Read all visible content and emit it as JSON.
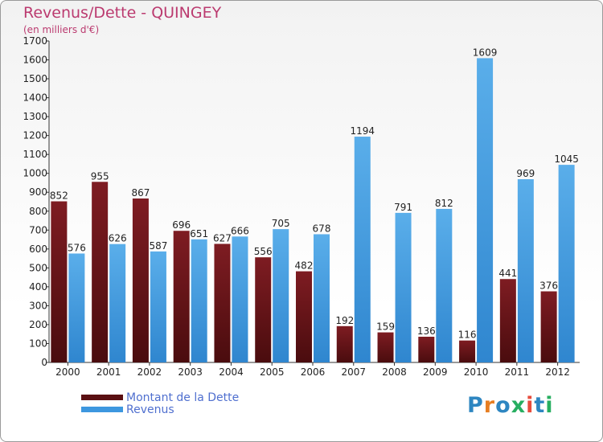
{
  "title": "Revenus/Dette - QUINGEY",
  "subtitle": "(en milliers d'€)",
  "colors": {
    "title": "#bb3a6f",
    "debt": "#7a1a1c",
    "revenue": "#3d97df",
    "legend_text": "#4f6fcf"
  },
  "logo": {
    "text": "Proxiti",
    "letter_colors": [
      "#2e86c1",
      "#e67e22",
      "#2e86c1",
      "#27ae60",
      "#e74c3c",
      "#2e86c1",
      "#27ae60"
    ]
  },
  "chart_data": {
    "type": "bar",
    "title": "Revenus/Dette - QUINGEY",
    "subtitle": "(en milliers d'€)",
    "categories": [
      "2000",
      "2001",
      "2002",
      "2003",
      "2004",
      "2005",
      "2006",
      "2007",
      "2008",
      "2009",
      "2010",
      "2011",
      "2012"
    ],
    "series": [
      {
        "name": "Montant de la Dette",
        "values": [
          852,
          955,
          867,
          696,
          627,
          556,
          482,
          192,
          159,
          136,
          116,
          441,
          376
        ]
      },
      {
        "name": "Revenus",
        "values": [
          576,
          626,
          587,
          651,
          666,
          705,
          678,
          1194,
          791,
          812,
          1609,
          969,
          1045
        ]
      }
    ],
    "y_ticks": [
      0,
      100,
      200,
      300,
      400,
      500,
      600,
      700,
      800,
      900,
      1000,
      1100,
      1200,
      1300,
      1400,
      1500,
      1600,
      1700
    ],
    "ylim": [
      0,
      1700
    ],
    "grid": false,
    "legend_position": "bottom-left"
  }
}
